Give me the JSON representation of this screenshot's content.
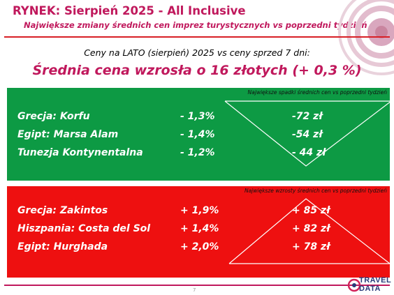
{
  "header": {
    "title": "RYNEK: Sierpień 2025 - All Inclusive",
    "subtitle": "Największe zmiany średnich cen imprez turystycznych vs poprzedni tydzień"
  },
  "intro": "Ceny na LATO (sierpień) 2025 vs ceny sprzed 7 dni:",
  "headline": "Średnia cena wzrosła o 16 złotych (+ 0,3 %)",
  "decreases": {
    "title": "Największe spadki średnich cen vs poprzedni tydzień",
    "rows": [
      {
        "destination": "Grecja: Korfu",
        "percent": "-  1,3%",
        "amount": "-72 zł"
      },
      {
        "destination": "Egipt: Marsa Alam",
        "percent": "-  1,4%",
        "amount": "-54 zł"
      },
      {
        "destination": "Tunezja Kontynentalna",
        "percent": "-  1,2%",
        "amount": "- 44 zł"
      }
    ]
  },
  "increases": {
    "title": "Największe wzrosty średnich cen vs poprzedni tydzień",
    "rows": [
      {
        "destination": "Grecja: Zakintos",
        "percent": "+ 1,9%",
        "amount": "+ 85 zł"
      },
      {
        "destination": "Hiszpania: Costa del Sol",
        "percent": "+ 1,4%",
        "amount": "+ 82 zł"
      },
      {
        "destination": "Egipt: Hurghada",
        "percent": "+ 2,0%",
        "amount": "+ 78 zł"
      }
    ]
  },
  "footer": {
    "page_number": "7",
    "logo_line1": "TRAVEL",
    "logo_line2": "DATA"
  },
  "colors": {
    "title": "#c0185c",
    "decrease_panel": "#0d9a44",
    "increase_panel": "#ee1010"
  }
}
